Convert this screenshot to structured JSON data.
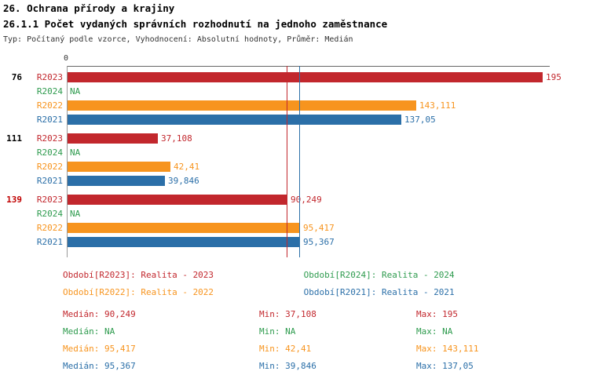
{
  "header": {
    "title": "26. Ochrana přírody a krajiny",
    "subtitle": "26.1.1 Počet vydaných správních rozhodnutí na jednoho zaměstnance",
    "meta": "Typ: Počítaný podle vzorce, Vyhodnocení: Absolutní hodnoty, Průměr: Medián"
  },
  "chart_data": {
    "type": "bar",
    "orientation": "horizontal",
    "axis": {
      "zero_label": "0",
      "position": "top"
    },
    "xlim": [
      0,
      198
    ],
    "series_order": [
      "R2023",
      "R2024",
      "R2022",
      "R2021"
    ],
    "series_colors": {
      "R2023": "#C2272D",
      "R2024": "#2E9B4E",
      "R2022": "#F7941E",
      "R2021": "#2B6FA8"
    },
    "groups": [
      {
        "label": "76",
        "label_color": "#000000",
        "bars": [
          {
            "series": "R2023",
            "value": 195,
            "display": "195"
          },
          {
            "series": "R2024",
            "value": null,
            "display": "NA"
          },
          {
            "series": "R2022",
            "value": 143.111,
            "display": "143,111"
          },
          {
            "series": "R2021",
            "value": 137.05,
            "display": "137,05"
          }
        ]
      },
      {
        "label": "111",
        "label_color": "#000000",
        "bars": [
          {
            "series": "R2023",
            "value": 37.108,
            "display": "37,108"
          },
          {
            "series": "R2024",
            "value": null,
            "display": "NA"
          },
          {
            "series": "R2022",
            "value": 42.41,
            "display": "42,41"
          },
          {
            "series": "R2021",
            "value": 39.846,
            "display": "39,846"
          }
        ]
      },
      {
        "label": "139",
        "label_color": "#C00000",
        "bars": [
          {
            "series": "R2023",
            "value": 90.249,
            "display": "90,249"
          },
          {
            "series": "R2024",
            "value": null,
            "display": "NA"
          },
          {
            "series": "R2022",
            "value": 95.417,
            "display": "95,417"
          },
          {
            "series": "R2021",
            "value": 95.367,
            "display": "95,367"
          }
        ]
      }
    ],
    "median_lines": [
      {
        "series": "R2022",
        "value": 95.417
      },
      {
        "series": "R2021",
        "value": 95.367
      },
      {
        "series": "R2023",
        "value": 90.249
      }
    ]
  },
  "legend": {
    "items": [
      {
        "text": "Období[R2023]: Realita - 2023",
        "color": "#C2272D"
      },
      {
        "text": "Období[R2024]: Realita - 2024",
        "color": "#2E9B4E"
      },
      {
        "text": "Období[R2022]: Realita - 2022",
        "color": "#F7941E"
      },
      {
        "text": "Období[R2021]: Realita - 2021",
        "color": "#2B6FA8"
      }
    ]
  },
  "stats": {
    "rows": [
      {
        "color": "#C2272D",
        "median": "Medián: 90,249",
        "min": "Min: 37,108",
        "max": "Max: 195"
      },
      {
        "color": "#2E9B4E",
        "median": "Medián: NA",
        "min": "Min: NA",
        "max": "Max: NA"
      },
      {
        "color": "#F7941E",
        "median": "Medián: 95,417",
        "min": "Min: 42,41",
        "max": "Max: 143,111"
      },
      {
        "color": "#2B6FA8",
        "median": "Medián: 95,367",
        "min": "Min: 39,846",
        "max": "Max: 137,05"
      }
    ]
  }
}
